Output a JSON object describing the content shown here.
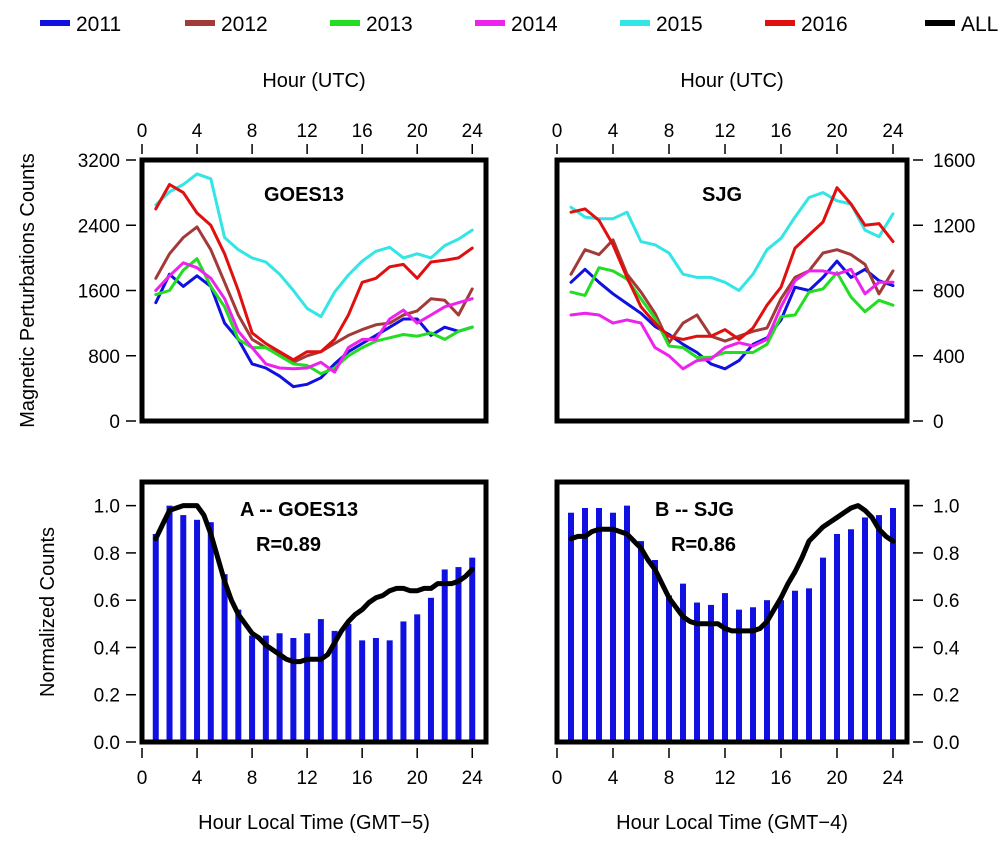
{
  "legend": [
    {
      "name": "2011",
      "color": "#1010e0"
    },
    {
      "name": "2012",
      "color": "#a33a3a"
    },
    {
      "name": "2013",
      "color": "#22dd22"
    },
    {
      "name": "2014",
      "color": "#ee22ee"
    },
    {
      "name": "2015",
      "color": "#33e5e5"
    },
    {
      "name": "2016",
      "color": "#e01010"
    },
    {
      "name": "ALL",
      "color": "#000000"
    }
  ],
  "colors": {
    "bar": "#1010e0",
    "all": "#000000"
  },
  "chart_data": [
    {
      "type": "line",
      "panel": "top-left",
      "title": "GOES13",
      "xlabel_top": "Hour (UTC)",
      "ylabel": "Magnetic Perturbations Counts",
      "xlim": [
        0,
        25
      ],
      "ylim": [
        0,
        3200
      ],
      "xticks": [
        "0",
        "4",
        "8",
        "12",
        "16",
        "20",
        "24"
      ],
      "yticks": [
        "0",
        "800",
        "1600",
        "2400",
        "3200"
      ],
      "x": [
        1,
        2,
        3,
        4,
        5,
        6,
        7,
        8,
        9,
        10,
        11,
        12,
        13,
        14,
        15,
        16,
        17,
        18,
        19,
        20,
        21,
        22,
        23,
        24
      ],
      "series": [
        {
          "name": "2011",
          "values": [
            1450,
            1800,
            1650,
            1780,
            1650,
            1200,
            1000,
            700,
            650,
            550,
            420,
            450,
            530,
            700,
            850,
            950,
            1050,
            1150,
            1250,
            1250,
            1050,
            1150,
            1100,
            1150
          ]
        },
        {
          "name": "2012",
          "values": [
            1750,
            2050,
            2250,
            2380,
            2100,
            1700,
            1300,
            1000,
            900,
            820,
            720,
            800,
            850,
            950,
            1050,
            1120,
            1180,
            1200,
            1300,
            1350,
            1500,
            1480,
            1300,
            1620
          ]
        },
        {
          "name": "2013",
          "values": [
            1550,
            1600,
            1850,
            1990,
            1650,
            1400,
            1000,
            900,
            900,
            800,
            700,
            680,
            580,
            650,
            800,
            900,
            980,
            1020,
            1060,
            1040,
            1080,
            1000,
            1100,
            1150
          ]
        },
        {
          "name": "2014",
          "values": [
            1600,
            1780,
            1940,
            1880,
            1750,
            1500,
            1100,
            900,
            700,
            650,
            640,
            650,
            720,
            600,
            900,
            1000,
            1000,
            1250,
            1360,
            1200,
            1300,
            1400,
            1450,
            1500
          ]
        },
        {
          "name": "2015",
          "values": [
            2650,
            2810,
            2900,
            3030,
            2970,
            2250,
            2100,
            2000,
            1950,
            1800,
            1600,
            1380,
            1280,
            1580,
            1790,
            1960,
            2080,
            2130,
            2000,
            2050,
            2000,
            2150,
            2230,
            2340
          ]
        },
        {
          "name": "2016",
          "values": [
            2600,
            2900,
            2800,
            2550,
            2400,
            2050,
            1600,
            1080,
            950,
            850,
            750,
            850,
            850,
            1000,
            1300,
            1700,
            1750,
            1890,
            1920,
            1750,
            1950,
            1970,
            2000,
            2120
          ]
        }
      ]
    },
    {
      "type": "line",
      "panel": "top-right",
      "title": "SJG",
      "xlabel_top": "Hour (UTC)",
      "xlim": [
        0,
        25
      ],
      "ylim": [
        0,
        1600
      ],
      "xticks": [
        "0",
        "4",
        "8",
        "12",
        "16",
        "20",
        "24"
      ],
      "yticks": [
        "0",
        "400",
        "800",
        "1200",
        "1600"
      ],
      "x": [
        1,
        2,
        3,
        4,
        5,
        6,
        7,
        8,
        9,
        10,
        11,
        12,
        13,
        14,
        15,
        16,
        17,
        18,
        19,
        20,
        21,
        22,
        23,
        24
      ],
      "series": [
        {
          "name": "2011",
          "values": [
            850,
            930,
            850,
            780,
            720,
            660,
            580,
            530,
            470,
            420,
            350,
            320,
            370,
            470,
            510,
            620,
            820,
            800,
            880,
            980,
            880,
            930,
            860,
            830
          ]
        },
        {
          "name": "2012",
          "values": [
            900,
            1050,
            1020,
            1110,
            900,
            790,
            660,
            480,
            600,
            650,
            520,
            490,
            520,
            550,
            570,
            750,
            880,
            920,
            1030,
            1050,
            1020,
            960,
            780,
            920
          ]
        },
        {
          "name": "2013",
          "values": [
            790,
            770,
            940,
            920,
            870,
            750,
            630,
            460,
            450,
            390,
            390,
            420,
            420,
            420,
            470,
            640,
            650,
            790,
            810,
            910,
            760,
            670,
            740,
            710
          ]
        },
        {
          "name": "2014",
          "values": [
            650,
            660,
            650,
            600,
            620,
            600,
            450,
            400,
            320,
            370,
            380,
            450,
            480,
            460,
            500,
            700,
            860,
            920,
            920,
            900,
            930,
            780,
            850,
            850
          ]
        },
        {
          "name": "2015",
          "values": [
            1310,
            1250,
            1240,
            1240,
            1280,
            1100,
            1080,
            1030,
            900,
            880,
            880,
            850,
            800,
            900,
            1050,
            1120,
            1250,
            1370,
            1400,
            1350,
            1330,
            1170,
            1130,
            1270
          ]
        },
        {
          "name": "2016",
          "values": [
            1280,
            1300,
            1230,
            1080,
            880,
            700,
            600,
            520,
            500,
            520,
            520,
            560,
            500,
            570,
            710,
            820,
            1060,
            1140,
            1220,
            1430,
            1330,
            1200,
            1210,
            1100
          ]
        }
      ]
    },
    {
      "type": "bar",
      "panel": "bottom-left",
      "title": "A -- GOES13",
      "annotation": "R=0.89",
      "xlabel": "Hour Local Time (GMT−5)",
      "ylabel": "Normalized Counts",
      "xlim": [
        0,
        25
      ],
      "ylim": [
        0,
        1.1
      ],
      "xticks": [
        "0",
        "4",
        "8",
        "12",
        "16",
        "20",
        "24"
      ],
      "yticks": [
        "0.0",
        "0.2",
        "0.4",
        "0.6",
        "0.8",
        "1.0"
      ],
      "x": [
        1,
        2,
        3,
        4,
        5,
        6,
        7,
        8,
        9,
        10,
        11,
        12,
        13,
        14,
        15,
        16,
        17,
        18,
        19,
        20,
        21,
        22,
        23,
        24
      ],
      "bar_values": [
        0.88,
        1.0,
        0.96,
        0.94,
        0.93,
        0.71,
        0.56,
        0.45,
        0.45,
        0.46,
        0.44,
        0.46,
        0.52,
        0.47,
        0.5,
        0.43,
        0.44,
        0.43,
        0.51,
        0.54,
        0.61,
        0.73,
        0.74,
        0.78
      ],
      "line_name": "ALL",
      "line_x": [
        1,
        1.5,
        2,
        2.5,
        3,
        3.5,
        4,
        4.5,
        5,
        5.5,
        6,
        6.5,
        7,
        7.5,
        8,
        8.5,
        9,
        9.5,
        10,
        10.5,
        11,
        11.5,
        12,
        12.5,
        13,
        13.5,
        14,
        14.5,
        15,
        15.5,
        16,
        16.5,
        17,
        17.5,
        18,
        18.5,
        19,
        19.5,
        20,
        20.5,
        21,
        21.5,
        22,
        22.5,
        23,
        23.5,
        24
      ],
      "line_values": [
        0.86,
        0.92,
        0.98,
        0.99,
        1.0,
        1.0,
        1.0,
        0.96,
        0.88,
        0.78,
        0.68,
        0.6,
        0.54,
        0.5,
        0.46,
        0.44,
        0.41,
        0.39,
        0.37,
        0.35,
        0.34,
        0.34,
        0.35,
        0.35,
        0.35,
        0.37,
        0.42,
        0.47,
        0.51,
        0.54,
        0.56,
        0.59,
        0.61,
        0.62,
        0.64,
        0.65,
        0.65,
        0.64,
        0.64,
        0.65,
        0.65,
        0.67,
        0.67,
        0.67,
        0.68,
        0.7,
        0.73
      ]
    },
    {
      "type": "bar",
      "panel": "bottom-right",
      "title": "B -- SJG",
      "annotation": "R=0.86",
      "xlabel": "Hour Local Time (GMT−4)",
      "xlim": [
        0,
        25
      ],
      "ylim": [
        0,
        1.1
      ],
      "xticks": [
        "0",
        "4",
        "8",
        "12",
        "16",
        "20",
        "24"
      ],
      "yticks": [
        "0.0",
        "0.2",
        "0.4",
        "0.6",
        "0.8",
        "1.0"
      ],
      "x": [
        1,
        2,
        3,
        4,
        5,
        6,
        7,
        8,
        9,
        10,
        11,
        12,
        13,
        14,
        15,
        16,
        17,
        18,
        19,
        20,
        21,
        22,
        23,
        24
      ],
      "bar_values": [
        0.97,
        0.99,
        0.99,
        0.97,
        1.0,
        0.85,
        0.77,
        0.62,
        0.67,
        0.59,
        0.58,
        0.63,
        0.56,
        0.57,
        0.6,
        0.6,
        0.64,
        0.65,
        0.78,
        0.88,
        0.9,
        0.95,
        0.96,
        0.99
      ],
      "line_name": "ALL",
      "line_x": [
        1,
        1.5,
        2,
        2.5,
        3,
        3.5,
        4,
        4.5,
        5,
        5.5,
        6,
        6.5,
        7,
        7.5,
        8,
        8.5,
        9,
        9.5,
        10,
        10.5,
        11,
        11.5,
        12,
        12.5,
        13,
        13.5,
        14,
        14.5,
        15,
        15.5,
        16,
        16.5,
        17,
        17.5,
        18,
        18.5,
        19,
        19.5,
        20,
        20.5,
        21,
        21.5,
        22,
        22.5,
        23,
        23.5,
        24
      ],
      "line_values": [
        0.86,
        0.87,
        0.87,
        0.89,
        0.9,
        0.9,
        0.9,
        0.89,
        0.88,
        0.85,
        0.82,
        0.77,
        0.73,
        0.67,
        0.61,
        0.57,
        0.53,
        0.51,
        0.5,
        0.5,
        0.5,
        0.5,
        0.48,
        0.47,
        0.47,
        0.47,
        0.47,
        0.48,
        0.51,
        0.56,
        0.61,
        0.67,
        0.72,
        0.78,
        0.85,
        0.88,
        0.91,
        0.93,
        0.95,
        0.97,
        0.99,
        1.0,
        0.98,
        0.95,
        0.9,
        0.87,
        0.85
      ]
    }
  ]
}
